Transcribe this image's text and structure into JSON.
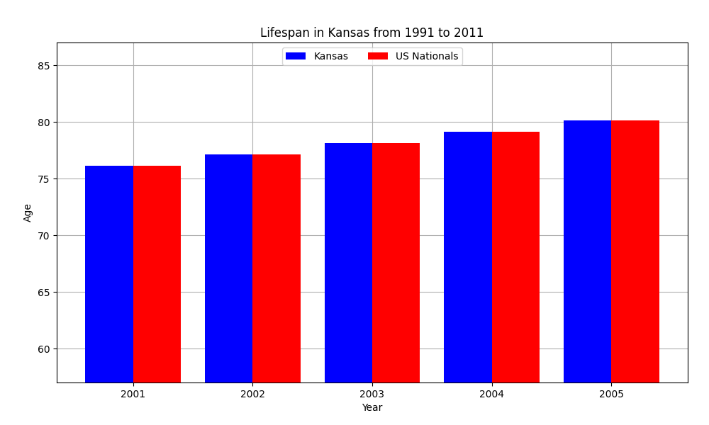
{
  "chart_data": {
    "type": "bar",
    "title": "Lifespan in Kansas from 1991 to 2011",
    "x_label": "Year",
    "y_label": "Age",
    "categories": [
      "2001",
      "2002",
      "2003",
      "2004",
      "2005"
    ],
    "series": [
      {
        "name": "Kansas",
        "color": "#0000FF",
        "values": [
          76.1,
          77.1,
          78.1,
          79.1,
          80.1
        ]
      },
      {
        "name": "US Nationals",
        "color": "#FF0000",
        "values": [
          76.1,
          77.1,
          78.1,
          79.1,
          80.1
        ]
      }
    ],
    "ylim": [
      57,
      87
    ],
    "yticks": [
      60,
      65,
      70,
      75,
      80,
      85
    ],
    "grid": true,
    "legend": "upper center"
  }
}
